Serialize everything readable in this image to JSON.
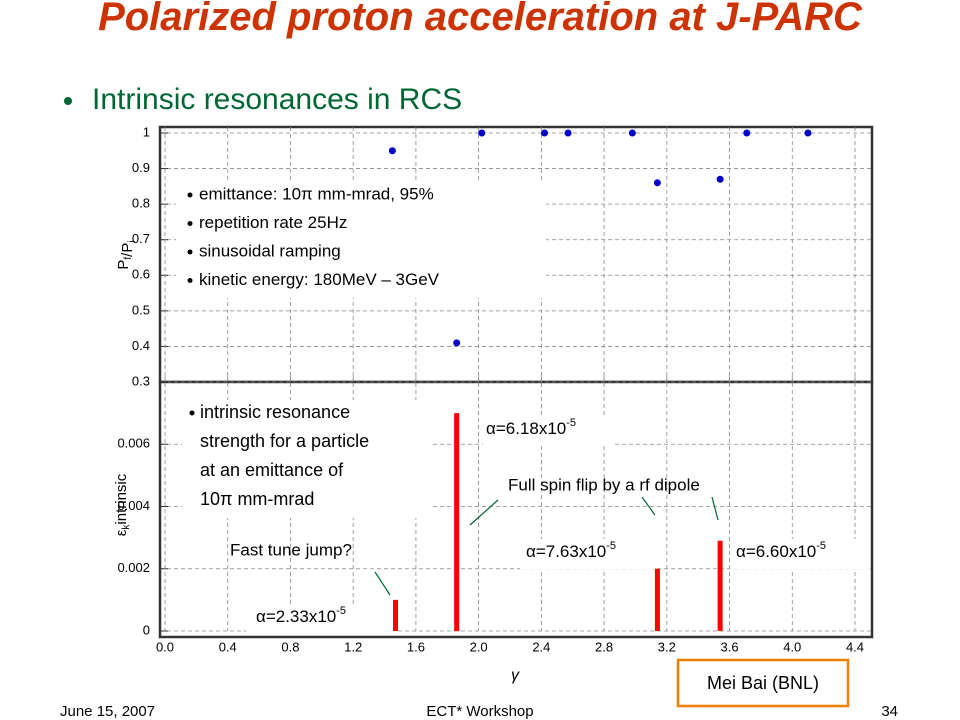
{
  "slide": {
    "title": "Polarized proton acceleration at J-PARC",
    "bullet": "Intrinsic resonances in RCS",
    "footer_left": "June 15, 2007",
    "footer_center": "ECT* Workshop",
    "footer_right": "34",
    "credit": "Mei Bai (BNL)"
  },
  "chart_data": [
    {
      "type": "scatter",
      "ylabel": [
        {
          "base": "P",
          "sub": "f"
        },
        {
          "base": "/P",
          "sub": "i"
        }
      ],
      "x": [
        1.45,
        1.86,
        2.02,
        2.42,
        2.57,
        2.98,
        3.14,
        3.54,
        3.71,
        4.1
      ],
      "values": [
        0.95,
        0.41,
        1,
        1,
        1,
        1,
        0.86,
        0.87,
        1,
        1
      ],
      "color": "#0000cc",
      "xlim": [
        0,
        4.4
      ],
      "ylim": [
        0.3,
        1
      ],
      "yticks": [
        0.3,
        0.4,
        0.5,
        0.6,
        0.7,
        0.8,
        0.9,
        1
      ],
      "grid": true,
      "notes": [
        "emittance: 10π mm-mrad, 95%",
        "repetition rate 25Hz",
        "sinusoidal ramping",
        "kinetic energy: 180MeV – 3GeV"
      ]
    },
    {
      "type": "bar",
      "ylabel": {
        "base": "ε",
        "sub": "k",
        "rest": "intrinsic"
      },
      "xlabel": "γ",
      "x": [
        1.47,
        1.86,
        3.14,
        3.54
      ],
      "values": [
        0.001,
        0.007,
        0.002,
        0.0029
      ],
      "color": "#ff0000",
      "xlim": [
        0,
        4.4
      ],
      "ylim": [
        0,
        0.008
      ],
      "xticks": [
        {
          "value": 0,
          "label": "0.0"
        },
        0.4,
        0.8,
        1.2,
        1.6,
        {
          "value": 2,
          "label": "2.0"
        },
        2.4,
        2.8,
        3.2,
        3.6,
        {
          "value": 4,
          "label": "4.0"
        },
        4.4
      ],
      "yticks": [
        0,
        0.002,
        0.004,
        0.006
      ],
      "grid": true,
      "note": [
        "intrinsic resonance",
        "strength for a particle",
        "at an emittance of",
        "10π mm-mrad"
      ],
      "annotations": [
        {
          "base": "α=2.33x10",
          "exp": "-5"
        },
        {
          "base": "α=6.18x10",
          "exp": "-5"
        },
        {
          "base": "α=7.63x10",
          "exp": "-5"
        },
        {
          "base": "α=6.60x10",
          "exp": "-5"
        },
        {
          "text": "Fast tune jump?"
        },
        {
          "text": "Full spin flip by a rf dipole"
        }
      ]
    }
  ]
}
